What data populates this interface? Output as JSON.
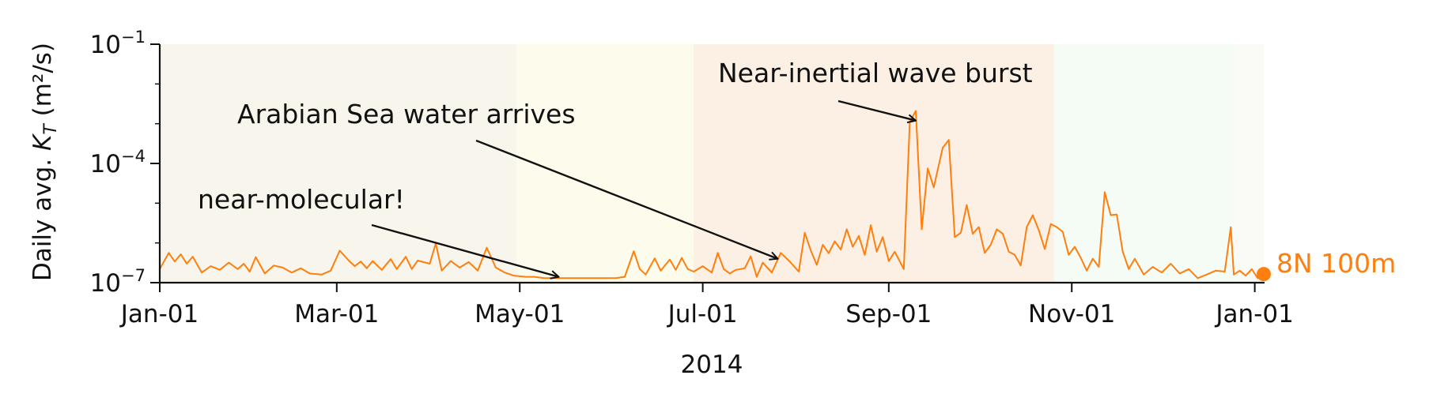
{
  "chart_data": {
    "type": "line",
    "ylabel_prefix": "Daily avg. ",
    "ylabel_symbol": "K",
    "ylabel_subscript": "T",
    "ylabel_units": " (m²/s)",
    "xlabel": "2014",
    "y_scale": "log",
    "ylim": [
      1e-07,
      0.1
    ],
    "xlim": [
      "2014-01-01",
      "2015-01-04"
    ],
    "grid": false,
    "y_ticks": [
      {
        "value": 1e-07,
        "label_base": "10",
        "label_exp": "−7"
      },
      {
        "value": 0.0001,
        "label_base": "10",
        "label_exp": "−4"
      },
      {
        "value": 0.1,
        "label_base": "10",
        "label_exp": "−1"
      }
    ],
    "x_ticks": [
      {
        "date": "2014-01-01",
        "label": "Jan-01"
      },
      {
        "date": "2014-03-01",
        "label": "Mar-01"
      },
      {
        "date": "2014-05-01",
        "label": "May-01"
      },
      {
        "date": "2014-07-01",
        "label": "Jul-01"
      },
      {
        "date": "2014-09-01",
        "label": "Sep-01"
      },
      {
        "date": "2014-11-01",
        "label": "Nov-01"
      },
      {
        "date": "2015-01-01",
        "label": "Jan-01"
      }
    ],
    "shaded_periods": [
      {
        "start": "2014-01-01",
        "end": "2014-04-30",
        "color": "#f8f6ec"
      },
      {
        "start": "2014-04-30",
        "end": "2014-06-28",
        "color": "#fdfbeb"
      },
      {
        "start": "2014-06-28",
        "end": "2014-10-26",
        "color": "#fbf0e3"
      },
      {
        "start": "2014-10-26",
        "end": "2014-12-25",
        "color": "#f5fcf5"
      },
      {
        "start": "2014-12-25",
        "end": "2015-01-04",
        "color": "#fafaf7"
      }
    ],
    "series": [
      {
        "name": "8N 100m",
        "color": "#ff7f0e",
        "points": [
          [
            "2014-01-01",
            2.2e-07
          ],
          [
            "2014-01-04",
            5.6e-07
          ],
          [
            "2014-01-06",
            3.4e-07
          ],
          [
            "2014-01-08",
            5.2e-07
          ],
          [
            "2014-01-10",
            3e-07
          ],
          [
            "2014-01-12",
            4.5e-07
          ],
          [
            "2014-01-15",
            1.8e-07
          ],
          [
            "2014-01-18",
            2.6e-07
          ],
          [
            "2014-01-21",
            2.1e-07
          ],
          [
            "2014-01-24",
            3.2e-07
          ],
          [
            "2014-01-27",
            2.2e-07
          ],
          [
            "2014-01-29",
            3e-07
          ],
          [
            "2014-01-31",
            1.9e-07
          ],
          [
            "2014-02-02",
            4.4e-07
          ],
          [
            "2014-02-05",
            1.7e-07
          ],
          [
            "2014-02-08",
            2.7e-07
          ],
          [
            "2014-02-11",
            2.4e-07
          ],
          [
            "2014-02-14",
            1.8e-07
          ],
          [
            "2014-02-17",
            2.3e-07
          ],
          [
            "2014-02-20",
            1.7e-07
          ],
          [
            "2014-02-24",
            1.6e-07
          ],
          [
            "2014-02-27",
            2e-07
          ],
          [
            "2014-03-02",
            6.4e-07
          ],
          [
            "2014-03-05",
            3.6e-07
          ],
          [
            "2014-03-07",
            2.6e-07
          ],
          [
            "2014-03-09",
            3.4e-07
          ],
          [
            "2014-03-11",
            2.3e-07
          ],
          [
            "2014-03-13",
            3.5e-07
          ],
          [
            "2014-03-16",
            2.1e-07
          ],
          [
            "2014-03-19",
            3.9e-07
          ],
          [
            "2014-03-21",
            2.2e-07
          ],
          [
            "2014-03-24",
            4.5e-07
          ],
          [
            "2014-03-26",
            2.2e-07
          ],
          [
            "2014-03-28",
            3.6e-07
          ],
          [
            "2014-04-01",
            3e-07
          ],
          [
            "2014-04-03",
            9.7e-07
          ],
          [
            "2014-04-05",
            2e-07
          ],
          [
            "2014-04-08",
            3.5e-07
          ],
          [
            "2014-04-11",
            2.4e-07
          ],
          [
            "2014-04-14",
            3.3e-07
          ],
          [
            "2014-04-17",
            2e-07
          ],
          [
            "2014-04-20",
            7.6e-07
          ],
          [
            "2014-04-23",
            2.4e-07
          ],
          [
            "2014-04-26",
            1.8e-07
          ],
          [
            "2014-04-29",
            1.5e-07
          ],
          [
            "2014-05-03",
            1.4e-07
          ],
          [
            "2014-05-06",
            1.4e-07
          ],
          [
            "2014-05-09",
            1.3e-07
          ],
          [
            "2014-05-13",
            1.3e-07
          ],
          [
            "2014-05-17",
            1.3e-07
          ],
          [
            "2014-05-21",
            1.3e-07
          ],
          [
            "2014-05-25",
            1.3e-07
          ],
          [
            "2014-05-29",
            1.3e-07
          ],
          [
            "2014-06-02",
            1.3e-07
          ],
          [
            "2014-06-05",
            1.4e-07
          ],
          [
            "2014-06-08",
            6.2e-07
          ],
          [
            "2014-06-10",
            2.2e-07
          ],
          [
            "2014-06-12",
            1.6e-07
          ],
          [
            "2014-06-15",
            4.1e-07
          ],
          [
            "2014-06-17",
            2e-07
          ],
          [
            "2014-06-20",
            3.8e-07
          ],
          [
            "2014-06-22",
            2.1e-07
          ],
          [
            "2014-06-24",
            4.2e-07
          ],
          [
            "2014-06-26",
            2.2e-07
          ],
          [
            "2014-06-28",
            1.9e-07
          ],
          [
            "2014-07-01",
            2.6e-07
          ],
          [
            "2014-07-04",
            1.8e-07
          ],
          [
            "2014-07-06",
            5.6e-07
          ],
          [
            "2014-07-08",
            2.2e-07
          ],
          [
            "2014-07-10",
            1.7e-07
          ],
          [
            "2014-07-12",
            2.1e-07
          ],
          [
            "2014-07-15",
            2.3e-07
          ],
          [
            "2014-07-17",
            4.6e-07
          ],
          [
            "2014-07-19",
            1.4e-07
          ],
          [
            "2014-07-21",
            3.2e-07
          ],
          [
            "2014-07-24",
            1.8e-07
          ],
          [
            "2014-07-27",
            5.6e-07
          ],
          [
            "2014-07-30",
            3.4e-07
          ],
          [
            "2014-08-02",
            1.9e-07
          ],
          [
            "2014-08-04",
            1.8e-06
          ],
          [
            "2014-08-06",
            6.5e-07
          ],
          [
            "2014-08-08",
            2.8e-07
          ],
          [
            "2014-08-10",
            9e-07
          ],
          [
            "2014-08-12",
            5.5e-07
          ],
          [
            "2014-08-14",
            1.1e-06
          ],
          [
            "2014-08-16",
            6.8e-07
          ],
          [
            "2014-08-18",
            2.2e-06
          ],
          [
            "2014-08-20",
            8e-07
          ],
          [
            "2014-08-22",
            1.5e-06
          ],
          [
            "2014-08-24",
            5e-07
          ],
          [
            "2014-08-26",
            2.8e-06
          ],
          [
            "2014-08-28",
            6e-07
          ],
          [
            "2014-08-30",
            1.4e-06
          ],
          [
            "2014-09-01",
            3.5e-07
          ],
          [
            "2014-09-03",
            6e-07
          ],
          [
            "2014-09-06",
            2.2e-07
          ],
          [
            "2014-09-08",
            0.0011
          ],
          [
            "2014-09-10",
            0.0021
          ],
          [
            "2014-09-12",
            2.2e-06
          ],
          [
            "2014-09-14",
            7.5e-05
          ],
          [
            "2014-09-16",
            2.5e-05
          ],
          [
            "2014-09-19",
            0.00025
          ],
          [
            "2014-09-21",
            0.00039
          ],
          [
            "2014-09-23",
            1.4e-06
          ],
          [
            "2014-09-25",
            1.8e-06
          ],
          [
            "2014-09-27",
            9e-06
          ],
          [
            "2014-09-29",
            1.7e-06
          ],
          [
            "2014-10-01",
            2.5e-06
          ],
          [
            "2014-10-03",
            5.6e-07
          ],
          [
            "2014-10-05",
            9e-07
          ],
          [
            "2014-10-07",
            2.2e-06
          ],
          [
            "2014-10-09",
            1.7e-06
          ],
          [
            "2014-10-11",
            6e-07
          ],
          [
            "2014-10-13",
            5e-07
          ],
          [
            "2014-10-15",
            2.7e-07
          ],
          [
            "2014-10-17",
            2.5e-06
          ],
          [
            "2014-10-19",
            5e-06
          ],
          [
            "2014-10-21",
            2.1e-06
          ],
          [
            "2014-10-23",
            7e-07
          ],
          [
            "2014-10-25",
            3e-06
          ],
          [
            "2014-10-27",
            2.5e-06
          ],
          [
            "2014-10-29",
            1.9e-06
          ],
          [
            "2014-10-31",
            5e-07
          ],
          [
            "2014-11-02",
            8e-07
          ],
          [
            "2014-11-04",
            4.2e-07
          ],
          [
            "2014-11-06",
            2e-07
          ],
          [
            "2014-11-08",
            4e-07
          ],
          [
            "2014-11-10",
            2.5e-07
          ],
          [
            "2014-11-12",
            1.9e-05
          ],
          [
            "2014-11-14",
            5e-06
          ],
          [
            "2014-11-16",
            5.2e-06
          ],
          [
            "2014-11-18",
            6e-07
          ],
          [
            "2014-11-20",
            2.2e-07
          ],
          [
            "2014-11-22",
            4e-07
          ],
          [
            "2014-11-25",
            1.6e-07
          ],
          [
            "2014-11-28",
            2.5e-07
          ],
          [
            "2014-12-01",
            1.8e-07
          ],
          [
            "2014-12-04",
            3e-07
          ],
          [
            "2014-12-07",
            1.7e-07
          ],
          [
            "2014-12-10",
            2.2e-07
          ],
          [
            "2014-12-13",
            1.3e-07
          ],
          [
            "2014-12-16",
            1.6e-07
          ],
          [
            "2014-12-19",
            2e-07
          ],
          [
            "2014-12-22",
            1.9e-07
          ],
          [
            "2014-12-24",
            2.5e-06
          ],
          [
            "2014-12-25",
            1.6e-07
          ],
          [
            "2014-12-27",
            2e-07
          ],
          [
            "2014-12-29",
            1.5e-07
          ],
          [
            "2014-12-31",
            2.2e-07
          ],
          [
            "2015-01-02",
            1.3e-07
          ],
          [
            "2015-01-04",
            1.8e-07
          ]
        ]
      }
    ],
    "end_label": "8N 100m",
    "annotations": [
      {
        "text": "near-molecular!",
        "point": [
          "2014-05-14",
          1.4e-07
        ]
      },
      {
        "text": "Arabian Sea water arrives",
        "point": [
          "2014-07-26",
          4e-07
        ]
      },
      {
        "text": "Near-inertial wave burst",
        "point": [
          "2014-09-10",
          0.0012
        ]
      }
    ]
  }
}
